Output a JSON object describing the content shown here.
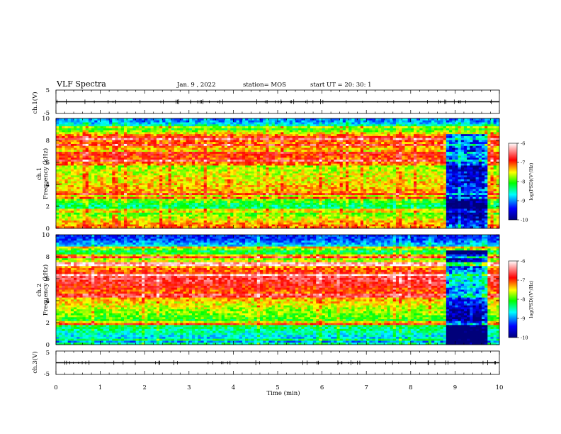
{
  "header": {
    "title": "VLF Spectra",
    "date": "Jan. 9 , 2022",
    "station": "station= MOS",
    "start": "start UT = 20: 30: 1"
  },
  "chart_data": [
    {
      "type": "line",
      "panel": "waveform ch.1",
      "ylabel": "ch.1(V)",
      "ylim": [
        -5,
        5
      ],
      "yticks": [
        "5",
        "-5"
      ],
      "xlim": [
        0,
        10
      ],
      "series": [
        {
          "x": [
            0,
            10
          ],
          "values": [
            0,
            0
          ]
        }
      ]
    },
    {
      "type": "heatmap",
      "panel": "spectrogram ch.1",
      "ylabel": "ch.1\nFrequency (kHz)",
      "xlim": [
        0,
        10
      ],
      "ylim": [
        0,
        10
      ],
      "yticks": [
        "0",
        "2",
        "4",
        "6",
        "8",
        "10"
      ],
      "colorbar": {
        "label": "log(PSD)(V²/Hz)",
        "range": [
          -10,
          -6
        ],
        "ticks": [
          "-6",
          "-7",
          "-8",
          "-9",
          "-10"
        ],
        "colors": [
          "#00007a",
          "#0000ff",
          "#00ffff",
          "#00ff00",
          "#ffff00",
          "#ff0000",
          "#ffffff"
        ]
      },
      "profile": [
        {
          "f": 9.7,
          "level": -9.0
        },
        {
          "f": 8.3,
          "level": -7.0
        },
        {
          "f": 6.0,
          "level": -7.8
        },
        {
          "f": 3.3,
          "level": -7.3
        },
        {
          "f": 2.0,
          "level": -8.4
        },
        {
          "f": 0.3,
          "level": -7.2
        }
      ],
      "quiet_period_min": [
        8.8,
        9.7
      ]
    },
    {
      "type": "heatmap",
      "panel": "spectrogram ch.2",
      "ylabel": "ch.2\nFrequency (kHz)",
      "xlim": [
        0,
        10
      ],
      "ylim": [
        0,
        10
      ],
      "yticks": [
        "0",
        "2",
        "4",
        "6",
        "8",
        "10"
      ],
      "colorbar": {
        "label": "log(PSD)(V²/Hz)",
        "range": [
          -10,
          -6
        ],
        "ticks": [
          "-6",
          "-7",
          "-8",
          "-9",
          "-10"
        ],
        "colors": [
          "#00007a",
          "#0000ff",
          "#00ffff",
          "#00ff00",
          "#ffff00",
          "#ff0000",
          "#ffffff"
        ]
      },
      "profile": [
        {
          "f": 9.6,
          "level": -9.3
        },
        {
          "f": 8.3,
          "level": -8.1
        },
        {
          "f": 6.0,
          "level": -6.6
        },
        {
          "f": 3.5,
          "level": -7.6
        },
        {
          "f": 1.5,
          "level": -8.3
        },
        {
          "f": 0.2,
          "level": -9.0
        }
      ],
      "quiet_period_min": [
        8.8,
        9.7
      ]
    },
    {
      "type": "line",
      "panel": "waveform ch.3",
      "ylabel": "ch.3(V)",
      "ylim": [
        -5,
        5
      ],
      "yticks": [
        "5",
        "-5"
      ],
      "xlim": [
        0,
        10
      ],
      "xticks": [
        "0",
        "1",
        "2",
        "3",
        "4",
        "5",
        "6",
        "7",
        "8",
        "9",
        "10"
      ],
      "xlabel": "Time (min)",
      "series": [
        {
          "x": [
            0,
            10
          ],
          "values": [
            0,
            0
          ]
        }
      ]
    }
  ]
}
